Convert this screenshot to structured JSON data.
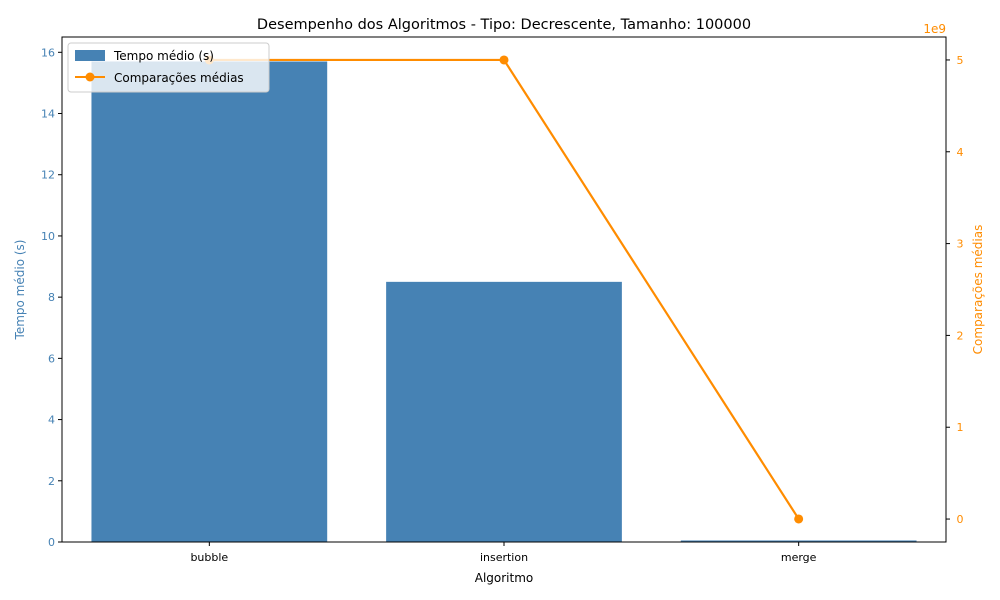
{
  "colors": {
    "bar": "#4682b4",
    "line": "#ff8c00",
    "axis": "#000000",
    "background": "#ffffff"
  },
  "chart_data": {
    "type": "bar",
    "title": "Desempenho dos Algoritmos - Tipo: Decrescente, Tamanho: 100000",
    "xlabel": "Algoritmo",
    "ylabel": "Tempo médio (s)",
    "y2label": "Comparações médias",
    "y2_offset_label": "1e9",
    "categories": [
      "bubble",
      "insertion",
      "merge"
    ],
    "series": [
      {
        "name": "Tempo médio (s)",
        "kind": "bar",
        "axis": "left",
        "values": [
          15.7,
          8.5,
          0.05
        ]
      },
      {
        "name": "Comparações médias",
        "kind": "line",
        "axis": "right",
        "values": [
          5000000000,
          5000000000,
          850000
        ]
      }
    ],
    "ylim": [
      0,
      16.5
    ],
    "yticks": [
      0,
      2,
      4,
      6,
      8,
      10,
      12,
      14,
      16
    ],
    "y2lim": [
      -250000000,
      5250000000
    ],
    "y2ticks": [
      0,
      1000000000,
      2000000000,
      3000000000,
      4000000000,
      5000000000
    ],
    "y2tick_labels": [
      "0",
      "1",
      "2",
      "3",
      "4",
      "5"
    ],
    "grid": false,
    "legend": "top-left"
  }
}
